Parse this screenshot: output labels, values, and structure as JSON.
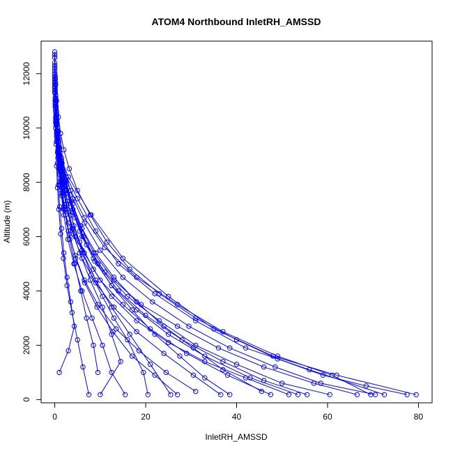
{
  "chart_data": {
    "type": "scatter",
    "title": "ATOM4 Northbound InletRH_AMSSD",
    "xlabel": "InletRH_AMSSD",
    "ylabel": "Altitude (m)",
    "xlim": [
      -3,
      83
    ],
    "ylim": [
      -120,
      13200
    ],
    "x_ticks": [
      0,
      20,
      40,
      60,
      80
    ],
    "y_ticks": [
      0,
      2000,
      4000,
      6000,
      8000,
      10000,
      12000
    ],
    "grid": false,
    "legend": "none",
    "marker": "open-circle",
    "connect_points": true,
    "color": "#0000ff",
    "series": [
      {
        "x": [
          0.0,
          0.0,
          0.1,
          0.2,
          0.3,
          0.2,
          0.5,
          0.8,
          1.2,
          1.0,
          1.6,
          2.0,
          3.0,
          4.5,
          6.0,
          8.0,
          10.5,
          13.0,
          16.0,
          19.5,
          20.5
        ],
        "y": [
          12800,
          12200,
          11600,
          11000,
          10500,
          10000,
          9500,
          9000,
          8500,
          8000,
          7500,
          7000,
          6500,
          6000,
          5500,
          4600,
          3800,
          3000,
          2200,
          1000,
          180
        ]
      },
      {
        "x": [
          0.0,
          0.1,
          0.2,
          0.4,
          0.6,
          1.0,
          1.5,
          3.0,
          8.0,
          15.0,
          25.0,
          35.0,
          48.0,
          62.0,
          79.5
        ],
        "y": [
          12600,
          11800,
          11200,
          10400,
          9800,
          9300,
          8800,
          8200,
          6800,
          5200,
          3800,
          2600,
          1600,
          900,
          180
        ]
      },
      {
        "x": [
          0.0,
          0.1,
          0.3,
          0.5,
          0.8,
          1.2,
          2.0,
          5.0,
          9.0,
          14.0,
          22.0,
          31.0,
          42.0,
          56.0,
          72.5
        ],
        "y": [
          12000,
          11400,
          10800,
          10200,
          9600,
          9000,
          8400,
          7400,
          6200,
          5000,
          3900,
          2900,
          1900,
          1100,
          180
        ]
      },
      {
        "x": [
          0.0,
          0.2,
          0.4,
          0.7,
          1.1,
          1.8,
          3.5,
          6.5,
          11.0,
          18.0,
          27.0,
          37.0,
          49.0,
          61.0,
          69.5
        ],
        "y": [
          11800,
          11000,
          10300,
          9700,
          9100,
          8500,
          7700,
          6700,
          5600,
          4500,
          3500,
          2500,
          1600,
          900,
          180
        ]
      },
      {
        "x": [
          0.0,
          0.1,
          0.2,
          0.4,
          0.7,
          1.0,
          1.5,
          2.5,
          4.0,
          6.5,
          10.0,
          15.0,
          21.0,
          29.0,
          38.0,
          47.5
        ],
        "y": [
          11500,
          10900,
          10400,
          9800,
          9200,
          8600,
          8000,
          7200,
          6300,
          5400,
          4400,
          3500,
          2600,
          1700,
          900,
          180
        ]
      },
      {
        "x": [
          0.0,
          0.1,
          0.2,
          0.4,
          0.6,
          0.9,
          1.4,
          2.2,
          3.6,
          5.5,
          8.5,
          12.5,
          18.0,
          25.0,
          33.0,
          43.0,
          53.5
        ],
        "y": [
          12300,
          11700,
          11100,
          10500,
          9900,
          9300,
          8700,
          8000,
          7100,
          6200,
          5200,
          4200,
          3300,
          2400,
          1600,
          800,
          180
        ]
      },
      {
        "x": [
          0.0,
          0.1,
          0.3,
          0.5,
          0.8,
          1.2,
          1.8,
          2.8,
          4.5,
          7.0,
          11.0,
          16.0,
          23.0,
          31.0,
          40.0,
          50.0,
          60.5
        ],
        "y": [
          11900,
          11300,
          10700,
          10100,
          9500,
          8900,
          8300,
          7600,
          6700,
          5700,
          4700,
          3800,
          2900,
          2000,
          1300,
          600,
          180
        ]
      },
      {
        "x": [
          0.0,
          0.2,
          0.4,
          0.7,
          1.0,
          1.5,
          2.3,
          3.6,
          5.6,
          8.6,
          13.0,
          19.0,
          27.0,
          36.0,
          46.0,
          57.0,
          66.5
        ],
        "y": [
          11700,
          11100,
          10500,
          9900,
          9300,
          8700,
          8100,
          7300,
          6400,
          5400,
          4400,
          3500,
          2700,
          1900,
          1200,
          600,
          180
        ]
      },
      {
        "x": [
          0.0,
          0.1,
          0.2,
          0.3,
          0.5,
          0.8,
          1.2,
          1.8,
          2.7,
          4.0,
          6.0,
          9.0,
          13.0,
          18.0,
          24.0,
          30.5,
          36.5
        ],
        "y": [
          12100,
          11500,
          10900,
          10300,
          9700,
          9100,
          8500,
          7800,
          7000,
          6100,
          5200,
          4300,
          3400,
          2500,
          1700,
          900,
          180
        ]
      },
      {
        "x": [
          0.0,
          0.1,
          0.3,
          0.6,
          1.0,
          1.6,
          2.5,
          4.0,
          6.3,
          9.5,
          14.0,
          20.0,
          28.0,
          37.0,
          46.0,
          55.5
        ],
        "y": [
          11600,
          11000,
          10400,
          9800,
          9200,
          8600,
          7900,
          7000,
          6000,
          5000,
          4000,
          3100,
          2200,
          1400,
          700,
          180
        ]
      },
      {
        "x": [
          0.0,
          0.1,
          0.2,
          0.4,
          0.6,
          0.9,
          1.3,
          1.9,
          2.8,
          4.2,
          6.2,
          9.0,
          12.5,
          16.5,
          21.0,
          25.5
        ],
        "y": [
          12400,
          11800,
          11200,
          10600,
          10000,
          9400,
          8800,
          8100,
          7300,
          6400,
          5400,
          4400,
          3400,
          2400,
          1300,
          180
        ]
      },
      {
        "x": [
          0.0,
          0.1,
          0.2,
          0.3,
          0.5,
          0.7,
          1.0,
          1.4,
          2.0,
          2.9,
          4.2,
          6.0,
          8.2,
          10.5,
          12.5,
          15.5
        ],
        "y": [
          11900,
          11300,
          10700,
          10100,
          9500,
          8900,
          8300,
          7600,
          6800,
          5900,
          5000,
          4000,
          3000,
          2000,
          1000,
          180
        ]
      },
      {
        "x": [
          0.0,
          0.1,
          0.3,
          0.5,
          0.9,
          1.4,
          2.2,
          3.5,
          5.5,
          8.5,
          12.5,
          18.0,
          25.0,
          33.0,
          42.0,
          51.5
        ],
        "y": [
          11400,
          10800,
          10200,
          9600,
          9000,
          8400,
          7700,
          6800,
          5800,
          4800,
          3800,
          2900,
          2100,
          1400,
          800,
          180
        ]
      },
      {
        "x": [
          0.0,
          0.2,
          0.4,
          0.8,
          1.3,
          2.0,
          3.2,
          5.0,
          7.8,
          11.5,
          16.5,
          23.0,
          31.0,
          40.0,
          49.0,
          59.0,
          68.5,
          77.5
        ],
        "y": [
          12200,
          11600,
          11000,
          10400,
          9800,
          9200,
          8500,
          7700,
          6800,
          5800,
          4800,
          3900,
          3000,
          2200,
          1500,
          900,
          500,
          180
        ]
      },
      {
        "x": [
          0.0,
          0.1,
          0.2,
          0.3,
          0.4,
          0.6,
          0.9,
          1.3,
          1.9,
          2.7,
          3.8,
          5.0,
          6.2,
          7.5
        ],
        "y": [
          11800,
          11000,
          10200,
          9400,
          8600,
          7800,
          7000,
          6100,
          5200,
          4200,
          3200,
          2200,
          1200,
          180
        ]
      },
      {
        "x": [
          0.0,
          0.1,
          0.2,
          0.4,
          0.7,
          1.1,
          1.7,
          2.6,
          4.0,
          6.0,
          8.8,
          12.5,
          17.0,
          22.0,
          27.5,
          33.0,
          38.5
        ],
        "y": [
          12000,
          11400,
          10800,
          10200,
          9600,
          9000,
          8400,
          7700,
          6900,
          6000,
          5100,
          4200,
          3300,
          2400,
          1600,
          800,
          180
        ]
      },
      {
        "x": [
          0.0,
          0.1,
          0.2,
          0.4,
          0.6,
          0.9,
          1.3,
          2.0,
          3.0,
          4.5,
          6.5,
          9.5,
          13.5,
          18.5,
          24.5,
          31.0
        ],
        "y": [
          11500,
          10900,
          10300,
          9700,
          9100,
          8500,
          7900,
          7100,
          6200,
          5300,
          4400,
          3500,
          2600,
          1800,
          1000,
          300
        ]
      },
      {
        "x": [
          0.0,
          0.1,
          0.2,
          0.3,
          0.5,
          0.8,
          1.2,
          1.8,
          2.6,
          3.8,
          5.5,
          7.8,
          10.5,
          12.5,
          14.5,
          10.0
        ],
        "y": [
          12300,
          11700,
          11100,
          10500,
          9900,
          9300,
          8700,
          8000,
          7200,
          6300,
          5400,
          4400,
          3400,
          2400,
          1400,
          180
        ]
      },
      {
        "x": [
          0.0,
          0.2,
          0.5,
          0.9,
          1.5,
          2.5,
          4.0,
          6.5,
          10.0,
          15.0,
          21.5,
          29.5,
          38.5,
          48.5,
          58.5,
          70.5
        ],
        "y": [
          11300,
          10700,
          10100,
          9500,
          8900,
          8200,
          7400,
          6500,
          5500,
          4500,
          3600,
          2700,
          1900,
          1200,
          600,
          180
        ]
      },
      {
        "x": [
          0.0,
          0.1,
          0.3,
          0.6,
          1.0,
          1.6,
          2.5,
          3.9,
          6.0,
          9.0,
          13.0,
          18.0,
          24.0,
          30.5,
          37.0,
          45.5
        ],
        "y": [
          11700,
          11100,
          10500,
          9900,
          9300,
          8700,
          8000,
          7200,
          6300,
          5400,
          4500,
          3600,
          2700,
          1900,
          1100,
          300
        ]
      },
      {
        "x": [
          0.0,
          0.1,
          0.2,
          0.3,
          0.5,
          0.8,
          1.2,
          1.7,
          2.4,
          3.3,
          4.4,
          5.7,
          7.0,
          8.5,
          9.5
        ],
        "y": [
          12600,
          11900,
          11200,
          10500,
          9800,
          9100,
          8400,
          7600,
          6800,
          5900,
          5000,
          4000,
          3000,
          2000,
          1000
        ]
      },
      {
        "x": [
          0.0,
          0.1,
          0.2,
          0.4,
          0.7,
          1.0,
          1.5,
          2.2,
          3.2,
          4.6,
          6.6,
          9.3,
          12.8,
          17.0,
          22.0,
          27.0
        ],
        "y": [
          12000,
          11300,
          10600,
          9900,
          9200,
          8500,
          7800,
          7000,
          6100,
          5200,
          4300,
          3400,
          2500,
          1600,
          900,
          180
        ]
      },
      {
        "x": [
          0.0,
          0.1,
          0.2,
          0.3,
          0.4,
          0.6,
          0.8,
          1.1,
          1.5,
          2.0,
          2.7,
          3.5,
          4.3,
          3.0,
          1.0
        ],
        "y": [
          12700,
          11900,
          11100,
          10300,
          9500,
          8700,
          7900,
          7100,
          6300,
          5400,
          4500,
          3600,
          2700,
          1800,
          1000
        ]
      }
    ]
  }
}
